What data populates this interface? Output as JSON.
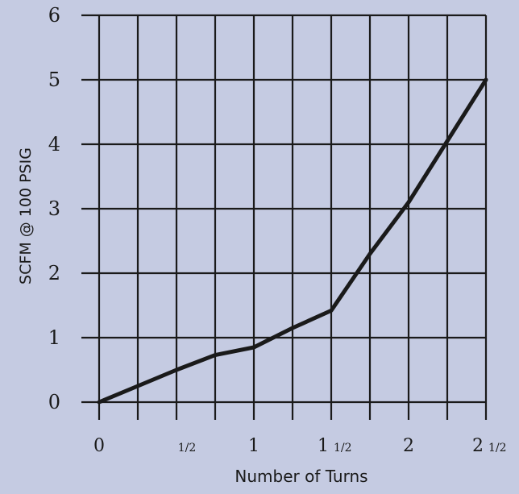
{
  "chart_data": {
    "type": "line",
    "title": "",
    "xlabel": "Number of Turns",
    "ylabel": "SCFM @ 100 PSIG",
    "xlim": [
      0,
      2.5
    ],
    "ylim": [
      0,
      6
    ],
    "grid": true,
    "x_ticks": [
      {
        "value": 0,
        "label": "0",
        "fraction": ""
      },
      {
        "value": 0.5,
        "label": "",
        "fraction": "1/2"
      },
      {
        "value": 1,
        "label": "1",
        "fraction": ""
      },
      {
        "value": 1.5,
        "label": "1",
        "fraction": "1/2"
      },
      {
        "value": 2,
        "label": "2",
        "fraction": ""
      },
      {
        "value": 2.5,
        "label": "2",
        "fraction": "1/2"
      }
    ],
    "y_ticks": [
      0,
      1,
      2,
      3,
      4,
      5,
      6
    ],
    "series": [
      {
        "x": [
          0,
          0.25,
          0.5,
          0.75,
          1.0,
          1.25,
          1.5,
          1.75,
          2.0,
          2.25,
          2.5
        ],
        "y": [
          0,
          0.25,
          0.5,
          0.73,
          0.85,
          1.15,
          1.42,
          2.3,
          3.1,
          4.05,
          5.0
        ]
      }
    ],
    "colors": {
      "background": "#c5cbe2",
      "grid": "#1a1a1a",
      "line": "#1a1a1a"
    }
  }
}
